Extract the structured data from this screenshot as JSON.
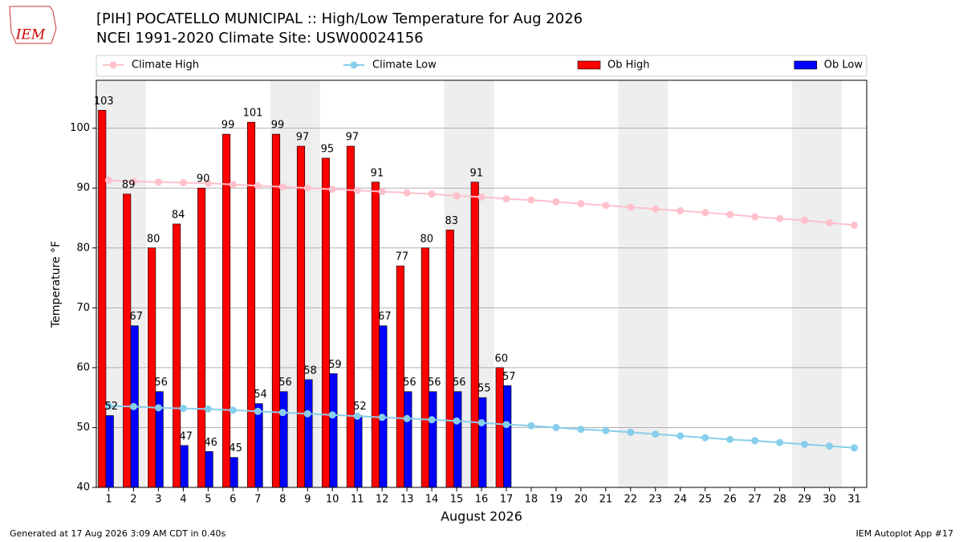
{
  "logo_text": "IEM",
  "chart_data": {
    "type": "bar",
    "title": "[PIH] POCATELLO MUNICIPAL :: High/Low Temperature for Aug 2026",
    "subtitle": "NCEI 1991-2020 Climate Site: USW00024156",
    "x_label": "August 2026",
    "y_label": "Temperature °F",
    "categories": [
      "1",
      "2",
      "3",
      "4",
      "5",
      "6",
      "7",
      "8",
      "9",
      "10",
      "11",
      "12",
      "13",
      "14",
      "15",
      "16",
      "17",
      "18",
      "19",
      "20",
      "21",
      "22",
      "23",
      "24",
      "25",
      "26",
      "27",
      "28",
      "29",
      "30",
      "31"
    ],
    "series": [
      {
        "name": "Climate High",
        "type": "line",
        "color": "#ffc0cb",
        "values": [
          91.3,
          91.1,
          91.0,
          90.9,
          90.8,
          90.6,
          90.4,
          90.2,
          90.0,
          89.8,
          89.6,
          89.4,
          89.2,
          89.0,
          88.7,
          88.5,
          88.2,
          88.0,
          87.7,
          87.4,
          87.1,
          86.8,
          86.5,
          86.2,
          85.9,
          85.6,
          85.2,
          84.9,
          84.6,
          84.2,
          83.8
        ]
      },
      {
        "name": "Climate Low",
        "type": "line",
        "color": "#87ceeb",
        "values": [
          53.6,
          53.5,
          53.3,
          53.2,
          53.1,
          52.9,
          52.7,
          52.5,
          52.3,
          52.1,
          51.9,
          51.7,
          51.5,
          51.3,
          51.1,
          50.8,
          50.5,
          50.3,
          50.0,
          49.7,
          49.5,
          49.2,
          48.9,
          48.6,
          48.3,
          48.0,
          47.8,
          47.5,
          47.2,
          46.9,
          46.6
        ]
      },
      {
        "name": "Ob High",
        "type": "bar",
        "color": "#ff0000",
        "values": [
          103,
          89,
          80,
          84,
          90,
          99,
          101,
          99,
          97,
          95,
          97,
          91,
          77,
          80,
          83,
          91,
          60,
          null,
          null,
          null,
          null,
          null,
          null,
          null,
          null,
          null,
          null,
          null,
          null,
          null,
          null
        ]
      },
      {
        "name": "Ob Low",
        "type": "bar",
        "color": "#0000ff",
        "values": [
          52,
          67,
          56,
          47,
          46,
          45,
          54,
          56,
          58,
          59,
          52,
          67,
          56,
          56,
          56,
          55,
          57,
          null,
          null,
          null,
          null,
          null,
          null,
          null,
          null,
          null,
          null,
          null,
          null,
          null,
          null
        ]
      }
    ],
    "highlight_ranges": [
      [
        "1",
        "2"
      ],
      [
        "8",
        "9"
      ],
      [
        "15",
        "16"
      ],
      [
        "22",
        "23"
      ],
      [
        "29",
        "30"
      ]
    ],
    "ylim": [
      40,
      108
    ],
    "yticks": [
      40,
      50,
      60,
      70,
      80,
      90,
      100
    ],
    "grid": true,
    "footer_left": "Generated at 17 Aug 2026 3:09 AM CDT in 0.40s",
    "footer_right": "IEM Autoplot App #17"
  }
}
